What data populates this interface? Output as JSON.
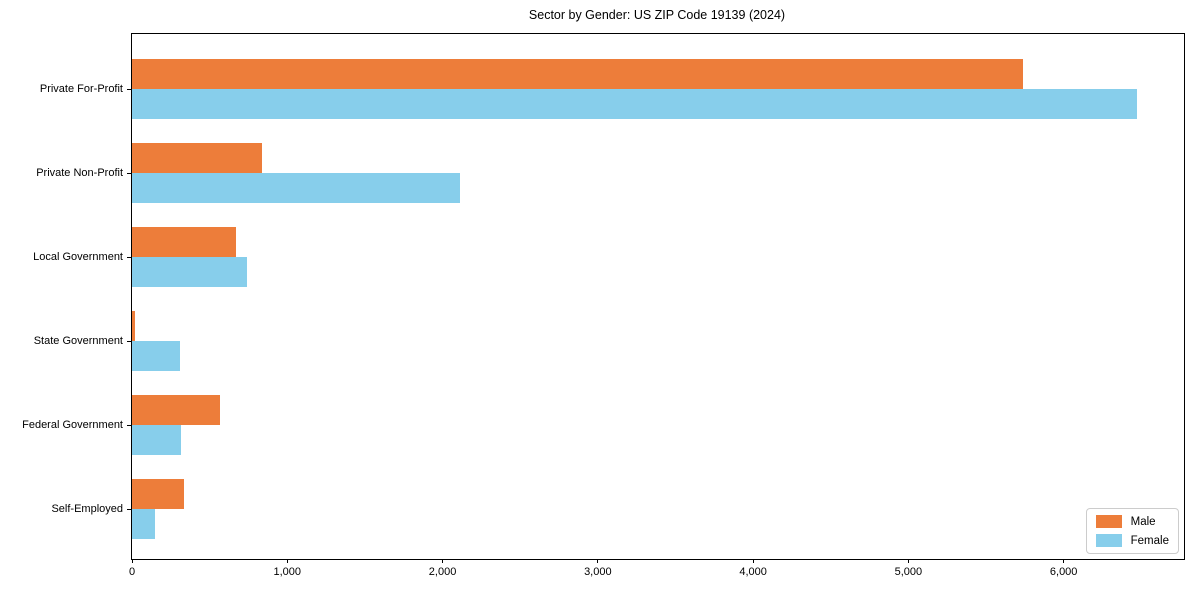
{
  "chart_data": {
    "type": "bar",
    "orientation": "horizontal",
    "title": "Sector by Gender: US ZIP Code 19139 (2024)",
    "categories": [
      "Private For-Profit",
      "Private Non-Profit",
      "Local Government",
      "State Government",
      "Federal Government",
      "Self-Employed"
    ],
    "series": [
      {
        "name": "Male",
        "color": "#ED7D3A",
        "values": [
          5740,
          840,
          670,
          20,
          565,
          335
        ]
      },
      {
        "name": "Female",
        "color": "#87CEEB",
        "values": [
          6470,
          2110,
          740,
          310,
          315,
          150
        ]
      }
    ],
    "xlabel": "",
    "ylabel": "",
    "xlim": [
      0,
      6775
    ],
    "xticks": [
      0,
      1000,
      2000,
      3000,
      4000,
      5000,
      6000
    ],
    "xtick_labels": [
      "0",
      "1,000",
      "2,000",
      "3,000",
      "4,000",
      "5,000",
      "6,000"
    ],
    "legend": {
      "position": "lower-right",
      "entries": [
        "Male",
        "Female"
      ]
    },
    "grid": false,
    "plot_border_color": "#000000",
    "background_color": "#ffffff"
  }
}
